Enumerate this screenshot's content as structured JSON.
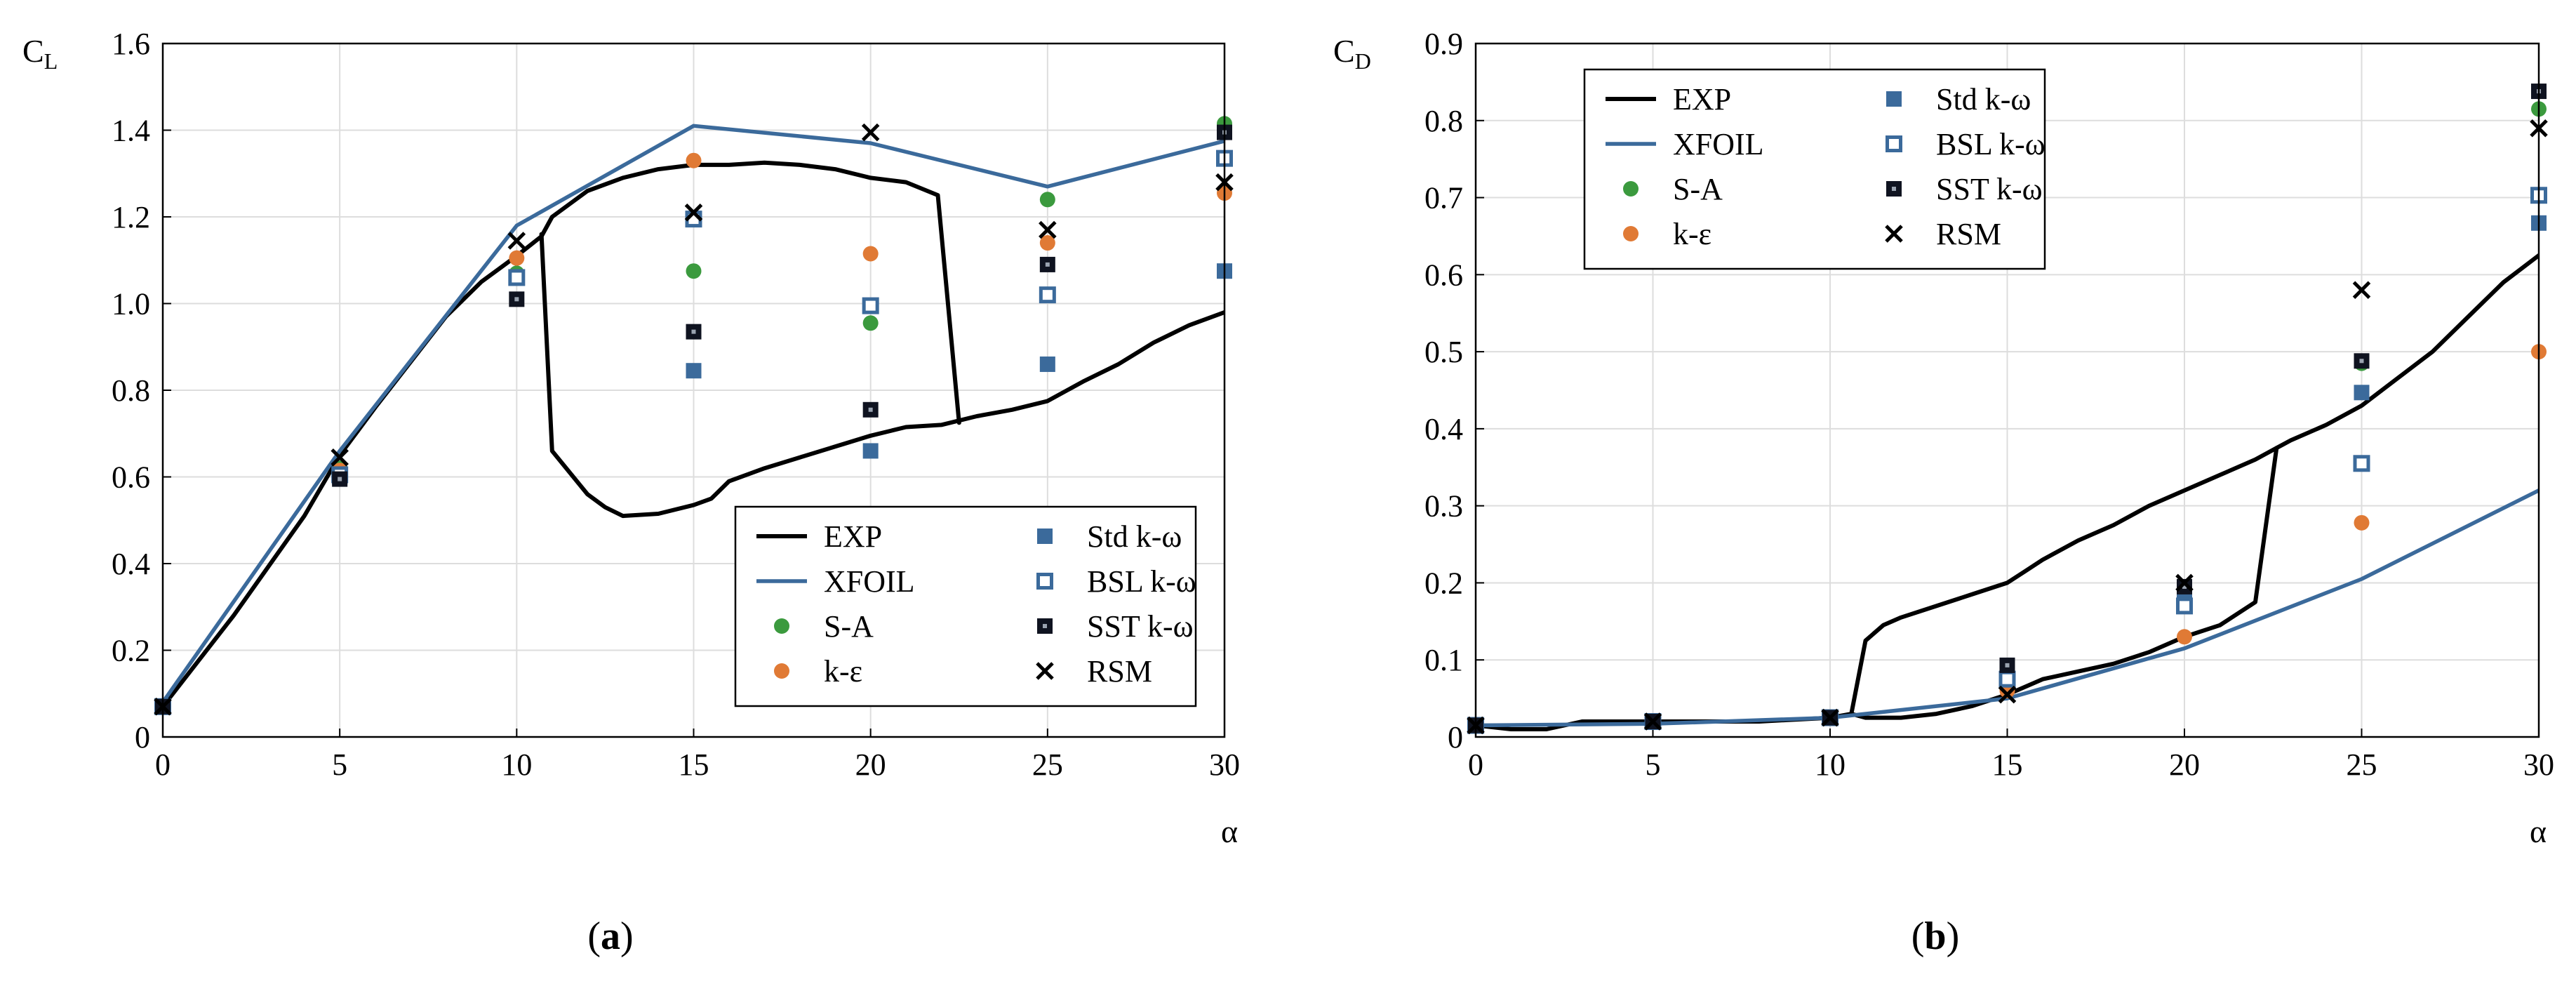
{
  "colors": {
    "exp": "#000000",
    "xfoil": "#3b6a9b",
    "sa": "#3b9a3e",
    "ke": "#e07a35",
    "std": "#3b6a9b",
    "bsl": "#3b6a9b",
    "sst": "#0f1320",
    "rsm": "#000000",
    "grid": "#dddddd"
  },
  "chart_data": [
    {
      "type": "line",
      "subcaption": {
        "open": "(",
        "letter": "a",
        "close": ")"
      },
      "ylabel": {
        "main": "C",
        "sub": "L"
      },
      "xlabel": "α",
      "xlim": [
        0,
        30
      ],
      "ylim": [
        0,
        1.6
      ],
      "xticks": [
        "0",
        "5",
        "10",
        "15",
        "20",
        "25",
        "30"
      ],
      "yticks": [
        "0",
        "0.2",
        "0.4",
        "0.6",
        "0.8",
        "1.0",
        "1.2",
        "1.4",
        "1.6"
      ],
      "grid": true,
      "legend_position": "bottom-right",
      "legend": [
        {
          "key": "exp",
          "label": "EXP"
        },
        {
          "key": "xfoil",
          "label": "XFOIL"
        },
        {
          "key": "sa",
          "label": "S-A"
        },
        {
          "key": "ke",
          "label": "k-ε"
        },
        {
          "key": "std",
          "label": "Std k-ω"
        },
        {
          "key": "bsl",
          "label": "BSL k-ω"
        },
        {
          "key": "sst",
          "label": "SST k-ω"
        },
        {
          "key": "rsm",
          "label": "RSM"
        }
      ],
      "lines": [
        {
          "key": "exp",
          "x": [
            0,
            2,
            4,
            5,
            6,
            8,
            9,
            10,
            10.7,
            11,
            12,
            13,
            14,
            15,
            16,
            17,
            18,
            19,
            20,
            21,
            21.9,
            22.5
          ],
          "y": [
            0.07,
            0.28,
            0.51,
            0.65,
            0.76,
            0.97,
            1.05,
            1.11,
            1.155,
            1.2,
            1.26,
            1.29,
            1.31,
            1.32,
            1.32,
            1.325,
            1.32,
            1.31,
            1.29,
            1.28,
            1.25,
            0.725
          ]
        },
        {
          "key": "exp",
          "x": [
            10.7,
            11,
            12,
            12.5,
            13,
            14,
            15,
            15.5,
            16,
            17,
            18,
            19,
            20,
            21,
            22,
            23,
            24,
            25,
            26,
            27,
            28,
            29,
            30
          ],
          "y": [
            1.16,
            0.66,
            0.56,
            0.53,
            0.51,
            0.515,
            0.535,
            0.55,
            0.59,
            0.62,
            0.645,
            0.67,
            0.695,
            0.715,
            0.72,
            0.74,
            0.755,
            0.775,
            0.82,
            0.86,
            0.91,
            0.95,
            0.98
          ]
        },
        {
          "key": "xfoil",
          "x": [
            0,
            5,
            10,
            15,
            20,
            25,
            30
          ],
          "y": [
            0.08,
            0.66,
            1.18,
            1.41,
            1.37,
            1.27,
            1.375
          ]
        }
      ],
      "markers": [
        {
          "key": "sa",
          "x": [
            0,
            5,
            10,
            15,
            20,
            25,
            30
          ],
          "y": [
            0.07,
            0.62,
            1.07,
            1.075,
            0.955,
            1.24,
            1.415
          ]
        },
        {
          "key": "ke",
          "x": [
            0,
            5,
            10,
            15,
            20,
            25,
            30
          ],
          "y": [
            0.07,
            0.615,
            1.105,
            1.33,
            1.115,
            1.14,
            1.255
          ]
        },
        {
          "key": "std",
          "x": [
            0,
            5,
            10,
            15,
            20,
            25,
            30
          ],
          "y": [
            0.07,
            0.6,
            1.06,
            0.845,
            0.66,
            0.86,
            1.075
          ]
        },
        {
          "key": "bsl",
          "x": [
            0,
            5,
            10,
            15,
            20,
            25,
            30
          ],
          "y": [
            0.07,
            0.605,
            1.06,
            1.195,
            0.995,
            1.02,
            1.335
          ]
        },
        {
          "key": "sst",
          "x": [
            0,
            5,
            10,
            15,
            20,
            25,
            30
          ],
          "y": [
            0.07,
            0.595,
            1.01,
            0.935,
            0.755,
            1.09,
            1.395
          ]
        },
        {
          "key": "rsm",
          "x": [
            0,
            5,
            10,
            15,
            20,
            25,
            30
          ],
          "y": [
            0.07,
            0.645,
            1.145,
            1.21,
            1.395,
            1.17,
            1.28
          ]
        }
      ]
    },
    {
      "type": "line",
      "subcaption": {
        "open": "(",
        "letter": "b",
        "close": ")"
      },
      "ylabel": {
        "main": "C",
        "sub": "D"
      },
      "xlabel": "α",
      "xlim": [
        0,
        30
      ],
      "ylim": [
        0,
        0.9
      ],
      "xticks": [
        "0",
        "5",
        "10",
        "15",
        "20",
        "25",
        "30"
      ],
      "yticks": [
        "0",
        "0.1",
        "0.2",
        "0.3",
        "0.4",
        "0.5",
        "0.6",
        "0.7",
        "0.8",
        "0.9"
      ],
      "grid": true,
      "legend_position": "top-left",
      "legend": [
        {
          "key": "exp",
          "label": "EXP"
        },
        {
          "key": "xfoil",
          "label": "XFOIL"
        },
        {
          "key": "sa",
          "label": "S-A"
        },
        {
          "key": "ke",
          "label": "k-ε"
        },
        {
          "key": "std",
          "label": "Std k-ω"
        },
        {
          "key": "bsl",
          "label": "BSL k-ω"
        },
        {
          "key": "sst",
          "label": "SST k-ω"
        },
        {
          "key": "rsm",
          "label": "RSM"
        }
      ],
      "lines": [
        {
          "key": "exp",
          "x": [
            0,
            1,
            2,
            3,
            5,
            8,
            10,
            10.6,
            11,
            11.5,
            12,
            13,
            14,
            15,
            15.5,
            16,
            17,
            18,
            19,
            20,
            21,
            22,
            22.6,
            23,
            24,
            25,
            26,
            27,
            28,
            29,
            30
          ],
          "y": [
            0.015,
            0.01,
            0.01,
            0.02,
            0.02,
            0.02,
            0.025,
            0.03,
            0.125,
            0.145,
            0.155,
            0.17,
            0.185,
            0.2,
            0.215,
            0.23,
            0.255,
            0.275,
            0.3,
            0.32,
            0.34,
            0.36,
            0.375,
            0.385,
            0.405,
            0.43,
            0.465,
            0.5,
            0.545,
            0.59,
            0.625
          ]
        },
        {
          "key": "exp",
          "x": [
            10.6,
            11,
            12,
            13,
            14,
            15,
            16,
            17,
            18,
            19,
            20,
            21,
            22,
            22.6
          ],
          "y": [
            0.03,
            0.025,
            0.025,
            0.03,
            0.04,
            0.055,
            0.075,
            0.085,
            0.095,
            0.11,
            0.13,
            0.145,
            0.175,
            0.375
          ]
        },
        {
          "key": "xfoil",
          "x": [
            0,
            5,
            10,
            15,
            20,
            25,
            30
          ],
          "y": [
            0.015,
            0.017,
            0.025,
            0.05,
            0.115,
            0.205,
            0.32
          ]
        }
      ],
      "markers": [
        {
          "key": "sa",
          "x": [
            0,
            5,
            10,
            15,
            20,
            25,
            30
          ],
          "y": [
            0.015,
            0.02,
            0.025,
            0.085,
            0.19,
            0.485,
            0.815
          ]
        },
        {
          "key": "ke",
          "x": [
            0,
            5,
            10,
            15,
            20,
            25,
            30
          ],
          "y": [
            0.015,
            0.02,
            0.025,
            0.06,
            0.13,
            0.278,
            0.5
          ]
        },
        {
          "key": "std",
          "x": [
            0,
            5,
            10,
            15,
            20,
            25,
            30
          ],
          "y": [
            0.015,
            0.02,
            0.025,
            0.09,
            0.185,
            0.447,
            0.667
          ]
        },
        {
          "key": "bsl",
          "x": [
            0,
            5,
            10,
            15,
            20,
            25,
            30
          ],
          "y": [
            0.015,
            0.02,
            0.025,
            0.075,
            0.17,
            0.355,
            0.703
          ]
        },
        {
          "key": "sst",
          "x": [
            0,
            5,
            10,
            15,
            20,
            25,
            30
          ],
          "y": [
            0.015,
            0.02,
            0.025,
            0.093,
            0.195,
            0.488,
            0.838
          ]
        },
        {
          "key": "rsm",
          "x": [
            0,
            5,
            10,
            15,
            20,
            25,
            30
          ],
          "y": [
            0.015,
            0.02,
            0.025,
            0.055,
            0.2,
            0.58,
            0.79
          ]
        }
      ]
    }
  ]
}
